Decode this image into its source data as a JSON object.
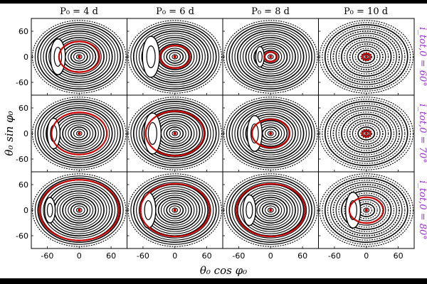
{
  "chart_data": {
    "type": "scatter",
    "title": "",
    "xlabel": "θ₀ cos φ₀",
    "ylabel": "θ₀ sin φ₀",
    "column_titles": [
      "P₀ = 4 d",
      "P₀ = 6 d",
      "P₀ = 8 d",
      "P₀ = 10 d"
    ],
    "row_titles": [
      "i_tot,0 = 60°",
      "i_tot,0 = 70°",
      "i_tot,0 = 80°"
    ],
    "x_ticks": [
      "-60",
      "0",
      "60"
    ],
    "y_ticks": [
      "60",
      "0",
      "-60"
    ],
    "x_tick_values": [
      -60,
      0,
      60
    ],
    "y_tick_values": [
      60,
      0,
      -60
    ],
    "xlim": [
      -90,
      90
    ],
    "ylim": [
      -90,
      90
    ],
    "grid": false,
    "colors": {
      "trajectory": "#000000",
      "highlight": "#cc0000",
      "row_label": "#9b30d9"
    },
    "panels": [
      {
        "row": 0,
        "col": 0,
        "outer_radius": 88,
        "red_ring": 38,
        "island_x": -40,
        "island_size": 14
      },
      {
        "row": 0,
        "col": 1,
        "outer_radius": 88,
        "red_ring": 28,
        "island_x": -45,
        "island_size": 16
      },
      {
        "row": 0,
        "col": 2,
        "outer_radius": 88,
        "red_ring": 12,
        "island_x": -20,
        "island_size": 8
      },
      {
        "row": 0,
        "col": 3,
        "outer_radius": 88,
        "red_ring": 8,
        "island_x": 0,
        "island_size": 0
      },
      {
        "row": 1,
        "col": 0,
        "outer_radius": 88,
        "red_ring": 52,
        "island_x": -48,
        "island_size": 12
      },
      {
        "row": 1,
        "col": 1,
        "outer_radius": 88,
        "red_ring": 55,
        "island_x": -42,
        "island_size": 16
      },
      {
        "row": 1,
        "col": 2,
        "outer_radius": 88,
        "red_ring": 35,
        "island_x": -30,
        "island_size": 14
      },
      {
        "row": 1,
        "col": 3,
        "outer_radius": 88,
        "red_ring": 8,
        "island_x": 0,
        "island_size": 0
      },
      {
        "row": 2,
        "col": 0,
        "outer_radius": 88,
        "red_ring": 75,
        "island_x": -55,
        "island_size": 10
      },
      {
        "row": 2,
        "col": 1,
        "outer_radius": 88,
        "red_ring": 65,
        "island_x": -50,
        "island_size": 14
      },
      {
        "row": 2,
        "col": 2,
        "outer_radius": 88,
        "red_ring": 65,
        "island_x": -40,
        "island_size": 12
      },
      {
        "row": 2,
        "col": 3,
        "outer_radius": 88,
        "red_ring": 32,
        "island_x": -25,
        "island_size": 14
      }
    ]
  }
}
